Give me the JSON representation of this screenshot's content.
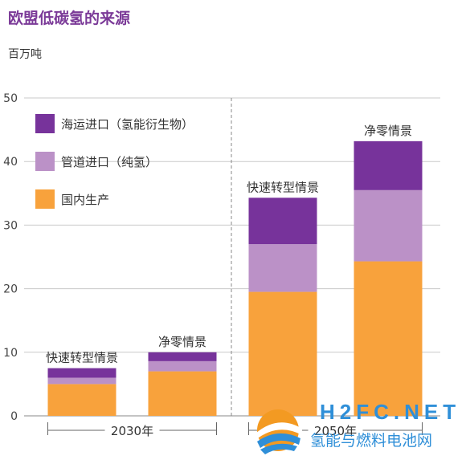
{
  "header": {
    "title": "欧盟低碳氢的来源",
    "unit": "百万吨"
  },
  "colors": {
    "shipping": "#77339b",
    "pipeline": "#bb91c7",
    "domestic": "#f8a23c",
    "title": "#7b3a98"
  },
  "chart_data": {
    "type": "bar",
    "stacked": true,
    "ylim": [
      0,
      50
    ],
    "yticks": [
      0,
      10,
      20,
      30,
      40,
      50
    ],
    "grid": true,
    "legend_placement": "top-left",
    "categories": [
      "快速转型情景",
      "净零情景",
      "快速转型情景",
      "净零情景"
    ],
    "groups": [
      {
        "label": "2030年",
        "categories": [
          0,
          1
        ]
      },
      {
        "label": "2050年",
        "categories": [
          2,
          3
        ]
      }
    ],
    "series": [
      {
        "name": "国内生产",
        "color_key": "domestic",
        "values": [
          5,
          7,
          19.5,
          24.3
        ]
      },
      {
        "name": "管道进口（纯氢）",
        "color_key": "pipeline",
        "values": [
          1,
          1.6,
          7.5,
          11.2
        ]
      },
      {
        "name": "海运进口（氢能衍生物）",
        "color_key": "shipping",
        "values": [
          1.5,
          1.4,
          7.3,
          7.7
        ]
      }
    ]
  },
  "watermark": {
    "domain": "H2FC.NET",
    "name": "氢能与燃料电池网"
  }
}
